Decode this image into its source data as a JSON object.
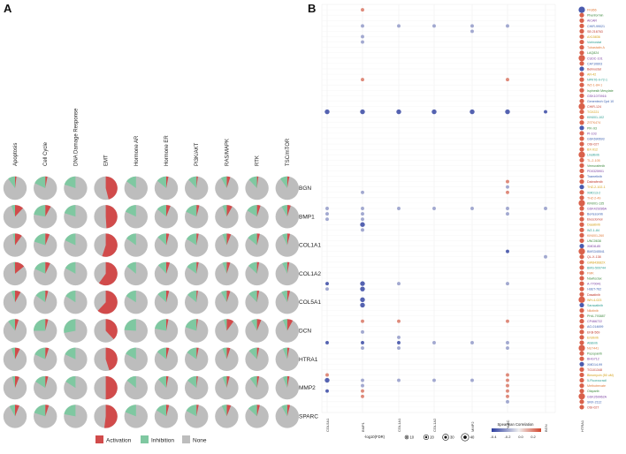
{
  "panel_a": {
    "label": "A"
  },
  "panel_b": {
    "label": "B"
  },
  "colors": {
    "activation": "#d14b4b",
    "inhibition": "#7fc8a1",
    "none": "#bdbdbd",
    "gene_label": "#222222",
    "scale_low": "#2c3ea0",
    "scale_high": "#d2452c"
  },
  "chart_data": [
    {
      "type": "pie",
      "title": "",
      "pathways": [
        "Apoptosis",
        "Cell Cycle",
        "DNA Damage Response",
        "EMT",
        "Hormone AR",
        "Hormone ER",
        "PI3K/AKT",
        "RAS/MAPK",
        "RTK",
        "TSC/mTOR"
      ],
      "genes": [
        "BGN",
        "BMP1",
        "COL1A1",
        "COL1A2",
        "COL5A1",
        "DCN",
        "HTRA1",
        "MMP2",
        "SPARC"
      ],
      "categories": [
        "Activation",
        "Inhibition",
        "None"
      ],
      "note": "each cell = [activation fraction, inhibition fraction]; none = remainder",
      "values": [
        [
          [
            0.02,
            0.1
          ],
          [
            0.03,
            0.18
          ],
          [
            0.0,
            0.2
          ],
          [
            0.46,
            0.0
          ],
          [
            0.0,
            0.15
          ],
          [
            0.03,
            0.14
          ],
          [
            0.02,
            0.12
          ],
          [
            0.05,
            0.08
          ],
          [
            0.02,
            0.12
          ],
          [
            0.03,
            0.1
          ]
        ],
        [
          [
            0.12,
            0.05
          ],
          [
            0.08,
            0.22
          ],
          [
            0.0,
            0.2
          ],
          [
            0.49,
            0.0
          ],
          [
            0.0,
            0.18
          ],
          [
            0.06,
            0.14
          ],
          [
            0.04,
            0.18
          ],
          [
            0.08,
            0.06
          ],
          [
            0.05,
            0.16
          ],
          [
            0.05,
            0.08
          ]
        ],
        [
          [
            0.1,
            0.03
          ],
          [
            0.06,
            0.2
          ],
          [
            0.0,
            0.18
          ],
          [
            0.55,
            0.0
          ],
          [
            0.0,
            0.15
          ],
          [
            0.04,
            0.13
          ],
          [
            0.03,
            0.16
          ],
          [
            0.06,
            0.06
          ],
          [
            0.04,
            0.14
          ],
          [
            0.04,
            0.07
          ]
        ],
        [
          [
            0.14,
            0.02
          ],
          [
            0.07,
            0.18
          ],
          [
            0.0,
            0.17
          ],
          [
            0.6,
            0.0
          ],
          [
            0.0,
            0.14
          ],
          [
            0.05,
            0.12
          ],
          [
            0.03,
            0.15
          ],
          [
            0.05,
            0.06
          ],
          [
            0.03,
            0.13
          ],
          [
            0.03,
            0.07
          ]
        ],
        [
          [
            0.08,
            0.05
          ],
          [
            0.04,
            0.15
          ],
          [
            0.0,
            0.16
          ],
          [
            0.62,
            0.0
          ],
          [
            0.0,
            0.16
          ],
          [
            0.04,
            0.13
          ],
          [
            0.02,
            0.14
          ],
          [
            0.05,
            0.08
          ],
          [
            0.03,
            0.12
          ],
          [
            0.04,
            0.08
          ]
        ],
        [
          [
            0.05,
            0.1
          ],
          [
            0.04,
            0.25
          ],
          [
            0.0,
            0.28
          ],
          [
            0.38,
            0.0
          ],
          [
            0.0,
            0.24
          ],
          [
            0.03,
            0.22
          ],
          [
            0.02,
            0.2
          ],
          [
            0.1,
            0.04
          ],
          [
            0.06,
            0.08
          ],
          [
            0.08,
            0.06
          ]
        ],
        [
          [
            0.07,
            0.05
          ],
          [
            0.05,
            0.18
          ],
          [
            0.0,
            0.18
          ],
          [
            0.45,
            0.0
          ],
          [
            0.0,
            0.17
          ],
          [
            0.04,
            0.14
          ],
          [
            0.03,
            0.15
          ],
          [
            0.05,
            0.06
          ],
          [
            0.03,
            0.12
          ],
          [
            0.03,
            0.06
          ]
        ],
        [
          [
            0.06,
            0.04
          ],
          [
            0.04,
            0.16
          ],
          [
            0.0,
            0.16
          ],
          [
            0.5,
            0.0
          ],
          [
            0.0,
            0.14
          ],
          [
            0.03,
            0.12
          ],
          [
            0.02,
            0.14
          ],
          [
            0.04,
            0.06
          ],
          [
            0.03,
            0.1
          ],
          [
            0.03,
            0.06
          ]
        ],
        [
          [
            0.06,
            0.08
          ],
          [
            0.05,
            0.2
          ],
          [
            0.0,
            0.22
          ],
          [
            0.52,
            0.0
          ],
          [
            0.0,
            0.19
          ],
          [
            0.04,
            0.16
          ],
          [
            0.03,
            0.17
          ],
          [
            0.06,
            0.07
          ],
          [
            0.04,
            0.13
          ],
          [
            0.04,
            0.08
          ]
        ]
      ],
      "legend": {
        "position": "bottom",
        "items": [
          "Activation",
          "Inhibition",
          "None"
        ]
      }
    },
    {
      "type": "scatter",
      "title": "",
      "genes": [
        "COL5A1",
        "BMP1",
        "COL1A1",
        "COL1A2",
        "MMP2",
        "SPARC",
        "BGN",
        "HTRA1"
      ],
      "drugs": [
        "FK866",
        "Phenformin",
        "AICAR",
        "CHIR-99021",
        "SB 216763",
        "AX15836",
        "Vorinostat",
        "Tubastatin A",
        "LAQ824",
        "CUDC-101",
        "CAY10603",
        "Belinostat",
        "AR-42",
        "NPK76-II-72-1",
        "WZ-1-84-1",
        "Ispinesib Mesylate",
        "GSK1070916",
        "Genentech Cpd 10",
        "CHIR-124",
        "TGX221",
        "KIN001-102",
        "ZSTK474",
        "PIK-93",
        "PI-103",
        "GSK690693",
        "OSI-027",
        "BX-912",
        "Linsitinib",
        "TL-2-105",
        "Vemurafenib",
        "PD0325901",
        "Trametinib",
        "Dabrafenib",
        "THZ-2-102-1",
        "XMD13-2",
        "THZ-2-49",
        "KIN001-135",
        "GSK429286A",
        "Bortezomib",
        "Elesclomol",
        "Dasatinib",
        "WZ-1-84",
        "KIN001-260",
        "UNC0638",
        "XMD8-85",
        "BMS345541",
        "QL-X-138",
        "GW843682X",
        "BMS-509744",
        "FMK",
        "Navitoclax",
        "A-770041",
        "I-BET-762",
        "Dasatinib",
        "WH-4-023",
        "Saracatinib",
        "Nilotinib",
        "PHA-793887",
        "CP466722",
        "AG-014699",
        "EKB-569",
        "Erlotinib",
        "Afatinib",
        "NU7441",
        "Pazopanib",
        "BHG712",
        "XMD14-99",
        "TG101348",
        "Bleomycin (50 uM)",
        "5-Fluorouracil",
        "Methotrexate",
        "Olaparib",
        "GSK269962A",
        "SNX-2112",
        "OSI-027"
      ],
      "xlabel": "",
      "ylabel": "",
      "size_legend": {
        "title": "-log10(FDR)",
        "values": [
          10,
          20,
          30,
          40
        ]
      },
      "color_legend": {
        "title": "Spearman Correlation",
        "ticks": [
          "-0.4",
          "-0.2",
          "0.0",
          "0.2"
        ],
        "range": [
          -0.45,
          0.3
        ]
      },
      "points": [
        {
          "gene": "BMP1",
          "drug": "FK866",
          "size": 10,
          "r": 0.2
        },
        {
          "gene": "COL1A1",
          "drug": "CHIR-99021",
          "size": 10,
          "r": -0.2
        },
        {
          "gene": "BMP1",
          "drug": "CHIR-99021",
          "size": 10,
          "r": -0.2
        },
        {
          "gene": "COL1A2",
          "drug": "CHIR-99021",
          "size": 10,
          "r": -0.2
        },
        {
          "gene": "MMP2",
          "drug": "CHIR-99021",
          "size": 10,
          "r": -0.2
        },
        {
          "gene": "SPARC",
          "drug": "CHIR-99021",
          "size": 10,
          "r": -0.2
        },
        {
          "gene": "MMP2",
          "drug": "SB 216763",
          "size": 10,
          "r": -0.2
        },
        {
          "gene": "BMP1",
          "drug": "AX15836",
          "size": 10,
          "r": -0.2
        },
        {
          "gene": "BMP1",
          "drug": "Vorinostat",
          "size": 10,
          "r": -0.2
        },
        {
          "gene": "BMP1",
          "drug": "NPK76-II-72-1",
          "size": 10,
          "r": 0.2
        },
        {
          "gene": "SPARC",
          "drug": "NPK76-II-72-1",
          "size": 10,
          "r": 0.2
        },
        {
          "gene": "COL5A1",
          "drug": "TGX221",
          "size": 20,
          "r": -0.4
        },
        {
          "gene": "BMP1",
          "drug": "TGX221",
          "size": 20,
          "r": -0.4
        },
        {
          "gene": "COL1A1",
          "drug": "TGX221",
          "size": 20,
          "r": -0.4
        },
        {
          "gene": "COL1A2",
          "drug": "TGX221",
          "size": 20,
          "r": -0.4
        },
        {
          "gene": "MMP2",
          "drug": "TGX221",
          "size": 20,
          "r": -0.4
        },
        {
          "gene": "SPARC",
          "drug": "TGX221",
          "size": 20,
          "r": -0.4
        },
        {
          "gene": "BGN",
          "drug": "TGX221",
          "size": 10,
          "r": -0.4
        },
        {
          "gene": "SPARC",
          "drug": "Dabrafenib",
          "size": 10,
          "r": 0.2
        },
        {
          "gene": "SPARC",
          "drug": "THZ-2-102-1",
          "size": 10,
          "r": -0.2
        },
        {
          "gene": "BMP1",
          "drug": "XMD13-2",
          "size": 10,
          "r": -0.2
        },
        {
          "gene": "SPARC",
          "drug": "XMD13-2",
          "size": 10,
          "r": 0.2
        },
        {
          "gene": "COL5A1",
          "drug": "GSK429286A",
          "size": 10,
          "r": -0.2
        },
        {
          "gene": "BMP1",
          "drug": "GSK429286A",
          "size": 10,
          "r": -0.2
        },
        {
          "gene": "COL1A1",
          "drug": "GSK429286A",
          "size": 10,
          "r": -0.2
        },
        {
          "gene": "COL1A2",
          "drug": "GSK429286A",
          "size": 10,
          "r": -0.2
        },
        {
          "gene": "MMP2",
          "drug": "GSK429286A",
          "size": 10,
          "r": -0.2
        },
        {
          "gene": "SPARC",
          "drug": "GSK429286A",
          "size": 10,
          "r": -0.2
        },
        {
          "gene": "BGN",
          "drug": "GSK429286A",
          "size": 10,
          "r": -0.2
        },
        {
          "gene": "COL5A1",
          "drug": "Bortezomib",
          "size": 10,
          "r": -0.2
        },
        {
          "gene": "BMP1",
          "drug": "Bortezomib",
          "size": 10,
          "r": -0.2
        },
        {
          "gene": "SPARC",
          "drug": "Bortezomib",
          "size": 10,
          "r": -0.2
        },
        {
          "gene": "COL5A1",
          "drug": "Elesclomol",
          "size": 10,
          "r": -0.2
        },
        {
          "gene": "BMP1",
          "drug": "Elesclomol",
          "size": 10,
          "r": -0.2
        },
        {
          "gene": "BMP1",
          "drug": "WZ-1-84",
          "size": 10,
          "r": -0.2
        },
        {
          "gene": "SPARC",
          "drug": "BMS345541",
          "size": 10,
          "r": -0.4
        },
        {
          "gene": "BGN",
          "drug": "QL-X-138",
          "size": 10,
          "r": -0.2
        },
        {
          "gene": "COL5A1",
          "drug": "A-770041",
          "size": 10,
          "r": -0.4
        },
        {
          "gene": "BMP1",
          "drug": "A-770041",
          "size": 20,
          "r": -0.4
        },
        {
          "gene": "COL1A1",
          "drug": "A-770041",
          "size": 10,
          "r": -0.2
        },
        {
          "gene": "SPARC",
          "drug": "A-770041",
          "size": 10,
          "r": -0.2
        },
        {
          "gene": "COL5A1",
          "drug": "I-BET-762",
          "size": 10,
          "r": -0.2
        },
        {
          "gene": "BMP1",
          "drug": "I-BET-762",
          "size": 20,
          "r": -0.4
        },
        {
          "gene": "BMP1",
          "drug": "Dasatinib",
          "size": 20,
          "r": -0.4
        },
        {
          "gene": "BMP1",
          "drug": "WH-4-023",
          "size": 20,
          "r": -0.4
        },
        {
          "gene": "BMP1",
          "drug": "Saracatinib",
          "size": 20,
          "r": -0.4
        },
        {
          "gene": "BMP1",
          "drug": "CP466722",
          "size": 10,
          "r": 0.2
        },
        {
          "gene": "COL1A1",
          "drug": "CP466722",
          "size": 10,
          "r": 0.2
        },
        {
          "gene": "SPARC",
          "drug": "CP466722",
          "size": 10,
          "r": 0.2
        },
        {
          "gene": "BMP1",
          "drug": "EKB-569",
          "size": 10,
          "r": -0.2
        },
        {
          "gene": "COL1A1",
          "drug": "Erlotinib",
          "size": 10,
          "r": -0.2
        },
        {
          "gene": "COL5A1",
          "drug": "Afatinib",
          "size": 10,
          "r": -0.4
        },
        {
          "gene": "BMP1",
          "drug": "Afatinib",
          "size": 10,
          "r": -0.4
        },
        {
          "gene": "COL1A1",
          "drug": "Afatinib",
          "size": 10,
          "r": -0.4
        },
        {
          "gene": "COL1A2",
          "drug": "Afatinib",
          "size": 10,
          "r": -0.2
        },
        {
          "gene": "MMP2",
          "drug": "Afatinib",
          "size": 10,
          "r": -0.2
        },
        {
          "gene": "SPARC",
          "drug": "Afatinib",
          "size": 10,
          "r": -0.2
        },
        {
          "gene": "BMP1",
          "drug": "NU7441",
          "size": 10,
          "r": -0.2
        },
        {
          "gene": "COL1A1",
          "drug": "NU7441",
          "size": 10,
          "r": -0.2
        },
        {
          "gene": "SPARC",
          "drug": "NU7441",
          "size": 10,
          "r": -0.2
        },
        {
          "gene": "COL5A1",
          "drug": "Bleomycin (50 uM)",
          "size": 10,
          "r": 0.2
        },
        {
          "gene": "SPARC",
          "drug": "Bleomycin (50 uM)",
          "size": 10,
          "r": 0.2
        },
        {
          "gene": "COL5A1",
          "drug": "5-Fluorouracil",
          "size": 20,
          "r": -0.4
        },
        {
          "gene": "BMP1",
          "drug": "5-Fluorouracil",
          "size": 10,
          "r": -0.2
        },
        {
          "gene": "COL1A1",
          "drug": "5-Fluorouracil",
          "size": 10,
          "r": -0.2
        },
        {
          "gene": "COL1A2",
          "drug": "5-Fluorouracil",
          "size": 10,
          "r": -0.2
        },
        {
          "gene": "MMP2",
          "drug": "5-Fluorouracil",
          "size": 10,
          "r": -0.2
        },
        {
          "gene": "SPARC",
          "drug": "5-Fluorouracil",
          "size": 10,
          "r": 0.2
        },
        {
          "gene": "BMP1",
          "drug": "Methotrexate",
          "size": 10,
          "r": -0.2
        },
        {
          "gene": "SPARC",
          "drug": "Methotrexate",
          "size": 10,
          "r": 0.2
        },
        {
          "gene": "COL5A1",
          "drug": "Olaparib",
          "size": 10,
          "r": -0.4
        },
        {
          "gene": "BMP1",
          "drug": "Olaparib",
          "size": 10,
          "r": 0.2
        },
        {
          "gene": "SPARC",
          "drug": "Olaparib",
          "size": 10,
          "r": 0.2
        },
        {
          "gene": "BMP1",
          "drug": "GSK269962A",
          "size": 10,
          "r": 0.2
        },
        {
          "gene": "SPARC",
          "drug": "GSK269962A",
          "size": 10,
          "r": 0.2
        },
        {
          "gene": "SPARC",
          "drug": "SNX-2112",
          "size": 10,
          "r": -0.2
        }
      ]
    }
  ]
}
